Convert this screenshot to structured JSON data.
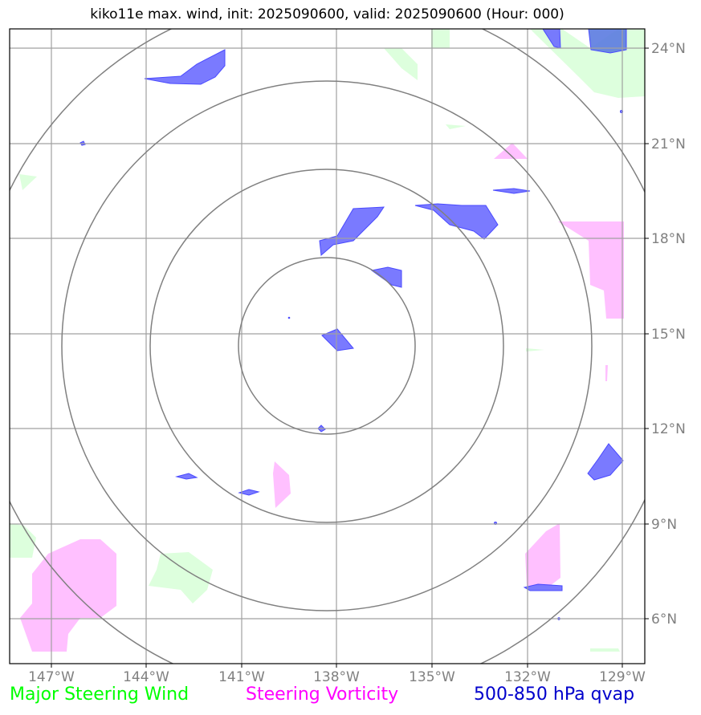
{
  "title": "kiko11e max. wind, init: 2025090600, valid: 2025090600 (Hour: 000)",
  "lat_labels": [
    "24°N",
    "21°N",
    "18°N",
    "15°N",
    "12°N",
    "9°N",
    "6°N"
  ],
  "lon_labels": [
    "147°W",
    "144°W",
    "141°W",
    "138°W",
    "135°W",
    "132°W",
    "129°W"
  ],
  "legend": {
    "wind": "Major Steering Wind",
    "vorticity": "Steering Vorticity",
    "qvap": "500-850 hPa qvap"
  },
  "colors": {
    "wind": "#00ff00",
    "vorticity": "#ff00ff",
    "qvap": "#0000cc",
    "wind_fill": "#ddffdd",
    "vorticity_fill": "#ffc0ff",
    "qvap_fill": "#7777ff",
    "grid": "#a0a0a0",
    "rings": "#808080"
  }
}
